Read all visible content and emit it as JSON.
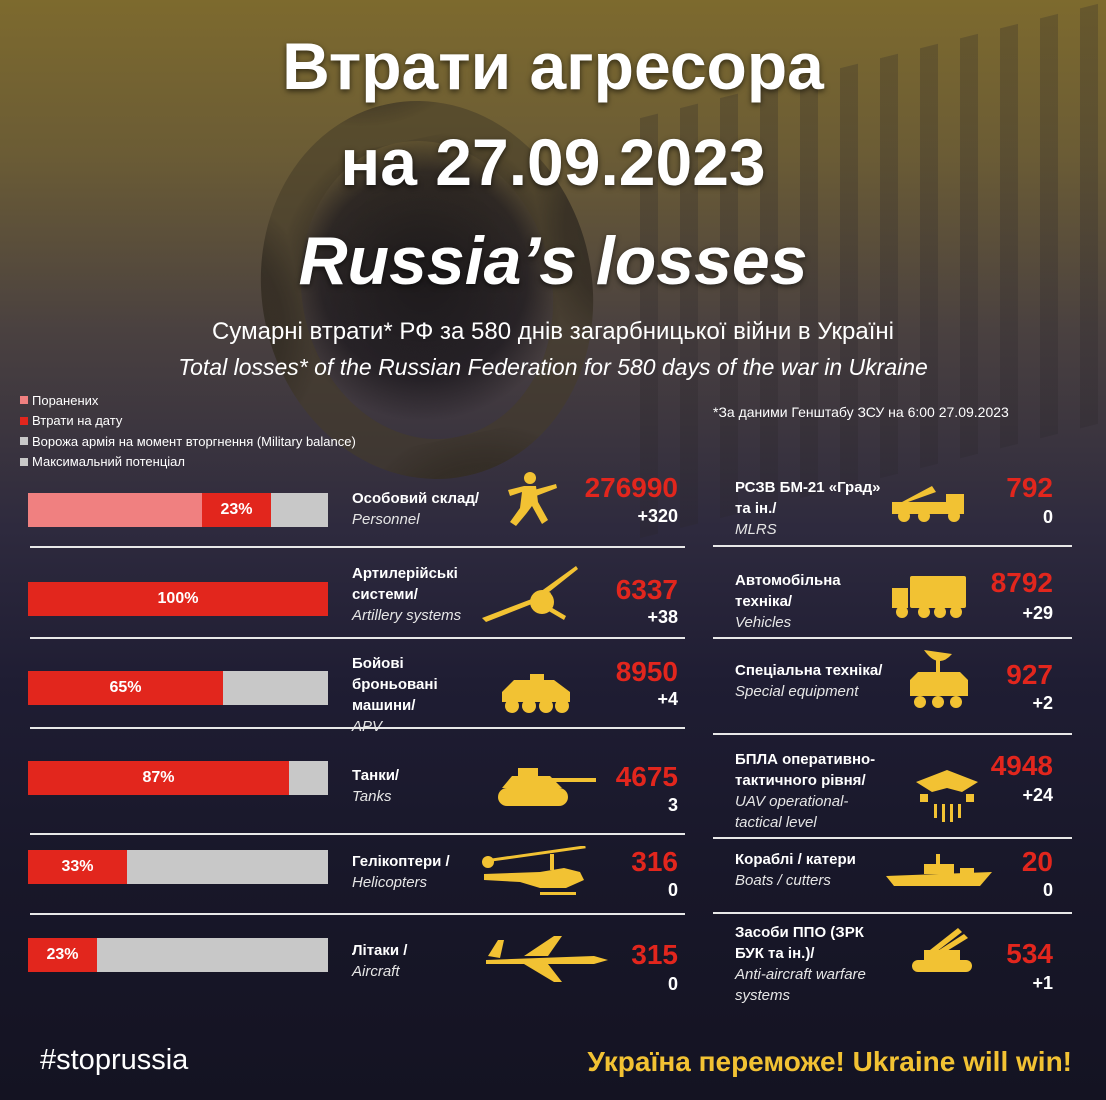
{
  "header": {
    "title_line1": "Втрати агресора",
    "title_line2": "на 27.09.2023",
    "title_line3": "Russia’s losses",
    "subtitle_ua": "Сумарні втрати* РФ за 580 днів загарбницької війни в Україні",
    "subtitle_en": "Total losses* of the Russian Federation  for 580 days of the war in Ukraine"
  },
  "legend": {
    "items": [
      {
        "label": "Поранених",
        "color": "#f08080"
      },
      {
        "label": "Втрати на дату",
        "color": "#e2261d"
      },
      {
        "label": "Ворожа армія на момент вторгнення (Military balance)",
        "color": "#c8c8c8"
      },
      {
        "label": "Максимальний потенціал",
        "color": "#c8c8c8"
      }
    ]
  },
  "source_note": "*За даними Генштабу ЗСУ на 6:00 27.09.2023",
  "colors": {
    "accent_red": "#e2261d",
    "wounded_pink": "#f08080",
    "capacity_grey": "#c8c8c8",
    "icon_gold": "#f2c233"
  },
  "chart_data": {
    "type": "bar",
    "title": "Втрати агресора на 27.09.2023",
    "left_items": [
      {
        "label_ua": "Особовий склад/",
        "label_en": "Personnel",
        "total": "276990",
        "delta": "+320",
        "percent_label": "23%",
        "percent": 23,
        "wounded_percent": 58,
        "icon": "soldier-icon"
      },
      {
        "label_ua": "Артилерійські системи/",
        "label_en": "Artillery systems",
        "total": "6337",
        "delta": "+38",
        "percent_label": "100%",
        "percent": 100,
        "icon": "artillery-icon"
      },
      {
        "label_ua": "Бойові броньовані машини/",
        "label_en": "APV",
        "total": "8950",
        "delta": "+4",
        "percent_label": "65%",
        "percent": 65,
        "icon": "apc-icon"
      },
      {
        "label_ua": "Танки/",
        "label_en": "Tanks",
        "total": "4675",
        "delta": "3",
        "percent_label": "87%",
        "percent": 87,
        "icon": "tank-icon"
      },
      {
        "label_ua": "Гелікоптери /",
        "label_en": "Helicopters",
        "total": "316",
        "delta": "0",
        "percent_label": "33%",
        "percent": 33,
        "icon": "helicopter-icon"
      },
      {
        "label_ua": "Літаки /",
        "label_en": "Aircraft",
        "total": "315",
        "delta": "0",
        "percent_label": "23%",
        "percent": 23,
        "icon": "jet-icon"
      }
    ],
    "right_items": [
      {
        "label_ua": "РСЗВ БМ-21 «Град» та ін./",
        "label_en": "MLRS",
        "total": "792",
        "delta": "0",
        "icon": "mlrs-icon"
      },
      {
        "label_ua": "Автомобільна техніка/",
        "label_en": "Vehicles",
        "total": "8792",
        "delta": "+29",
        "icon": "truck-icon"
      },
      {
        "label_ua": "Спеціальна техніка/",
        "label_en": "Special equipment",
        "total": "927",
        "delta": "+2",
        "icon": "radar-vehicle-icon"
      },
      {
        "label_ua": "БПЛА оперативно-тактичного рівня/",
        "label_en": "UAV operational-tactical level",
        "total": "4948",
        "delta": "+24",
        "icon": "drone-icon"
      },
      {
        "label_ua": "Кораблі / катери",
        "label_en": "Boats / cutters",
        "total": "20",
        "delta": "0",
        "icon": "ship-icon"
      },
      {
        "label_ua": "Засоби ППО (ЗРК БУК та ін.)/",
        "label_en": "Anti-aircraft warfare systems",
        "total": "534",
        "delta": "+1",
        "icon": "air-defense-icon"
      }
    ]
  },
  "footer": {
    "hashtag": "#stoprussia",
    "motto": "Україна переможе! Ukraine will win!"
  }
}
